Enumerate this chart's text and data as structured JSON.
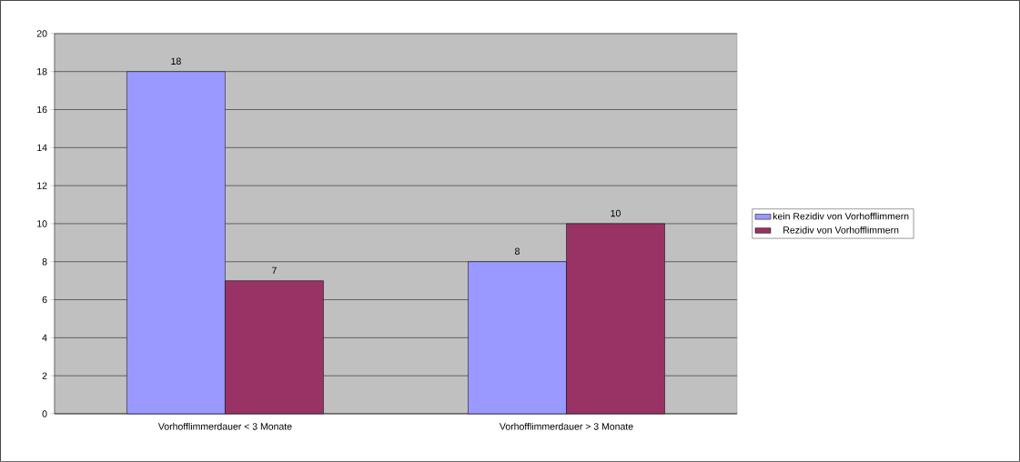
{
  "chart_data": {
    "type": "bar",
    "categories": [
      "Vorhofflimmerdauer < 3 Monate",
      "Vorhofflimmerdauer > 3 Monate"
    ],
    "series": [
      {
        "name": "kein Rezidiv von Vorhofflimmern",
        "color": "#9999ff",
        "values": [
          18,
          8
        ]
      },
      {
        "name": "Rezidiv von Vorhofflimmern",
        "color": "#993366",
        "values": [
          7,
          10
        ]
      }
    ],
    "ylim": [
      0,
      20
    ],
    "yticks": [
      0,
      2,
      4,
      6,
      8,
      10,
      12,
      14,
      16,
      18,
      20
    ],
    "grid": "y",
    "legend": "right",
    "data_labels": true
  }
}
